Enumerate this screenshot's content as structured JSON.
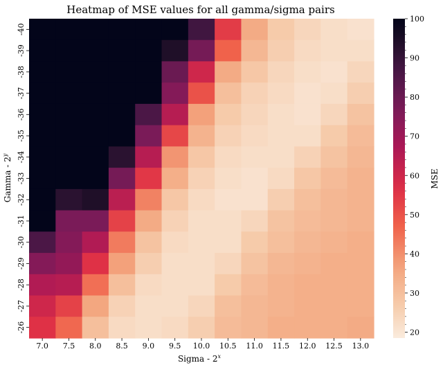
{
  "chart_data": {
    "type": "heatmap",
    "title": "Heatmap of MSE values for all gamma/sigma pairs",
    "xlabel": "Sigma - 2",
    "xlabel_sup": "x",
    "ylabel": "Gamma - 2",
    "ylabel_sup": "y",
    "x": [
      "7.0",
      "7.5",
      "8.0",
      "8.5",
      "9.0",
      "9.5",
      "10.0",
      "10.5",
      "11.0",
      "11.5",
      "12.0",
      "12.5",
      "13.0"
    ],
    "y": [
      "-40",
      "-39",
      "-38",
      "-37",
      "-36",
      "-35",
      "-34",
      "-33",
      "-32",
      "-31",
      "-30",
      "-29",
      "-28",
      "-27",
      "-26"
    ],
    "values": [
      [
        100,
        100,
        100,
        100,
        100,
        100,
        88,
        54,
        35,
        27,
        24,
        22,
        21
      ],
      [
        100,
        100,
        100,
        100,
        100,
        94,
        78,
        47,
        32,
        26,
        23,
        22,
        22
      ],
      [
        100,
        100,
        100,
        100,
        100,
        80,
        60,
        35,
        28,
        24,
        22,
        21,
        24
      ],
      [
        100,
        100,
        100,
        100,
        100,
        75,
        50,
        30,
        25,
        23,
        21,
        22,
        26
      ],
      [
        100,
        100,
        100,
        100,
        86,
        65,
        37,
        27,
        24,
        22,
        21,
        24,
        29
      ],
      [
        100,
        100,
        100,
        100,
        77,
        52,
        33,
        25,
        23,
        22,
        22,
        27,
        31
      ],
      [
        100,
        100,
        100,
        92,
        65,
        39,
        28,
        23,
        22,
        22,
        25,
        29,
        32
      ],
      [
        100,
        100,
        100,
        78,
        55,
        34,
        25,
        22,
        21,
        23,
        28,
        31,
        33
      ],
      [
        100,
        92,
        94,
        64,
        42,
        28,
        23,
        21,
        21,
        26,
        30,
        32,
        33
      ],
      [
        100,
        77,
        77,
        53,
        35,
        25,
        22,
        22,
        24,
        29,
        31,
        32,
        33
      ],
      [
        86,
        75,
        66,
        43,
        29,
        23,
        22,
        22,
        27,
        30,
        32,
        33,
        34
      ],
      [
        75,
        72,
        56,
        37,
        26,
        22,
        22,
        24,
        29,
        32,
        33,
        34,
        34
      ],
      [
        66,
        65,
        45,
        30,
        23,
        22,
        22,
        27,
        31,
        33,
        34,
        34,
        34
      ],
      [
        60,
        53,
        36,
        25,
        22,
        22,
        24,
        30,
        32,
        33,
        34,
        34,
        34
      ],
      [
        56,
        46,
        30,
        23,
        22,
        23,
        26,
        31,
        32,
        34,
        34,
        34,
        35
      ]
    ],
    "vmin": 18.5,
    "vmax": 100,
    "colorbar_label": "MSE",
    "colorbar_ticks": [
      20,
      30,
      40,
      50,
      60,
      70,
      80,
      90,
      100
    ],
    "colormap": "rocket_r",
    "grid": false
  }
}
